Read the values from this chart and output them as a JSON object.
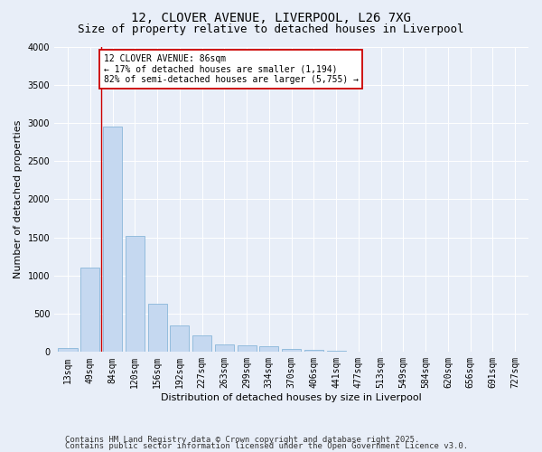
{
  "title_line1": "12, CLOVER AVENUE, LIVERPOOL, L26 7XG",
  "title_line2": "Size of property relative to detached houses in Liverpool",
  "xlabel": "Distribution of detached houses by size in Liverpool",
  "ylabel": "Number of detached properties",
  "categories": [
    "13sqm",
    "49sqm",
    "84sqm",
    "120sqm",
    "156sqm",
    "192sqm",
    "227sqm",
    "263sqm",
    "299sqm",
    "334sqm",
    "370sqm",
    "406sqm",
    "441sqm",
    "477sqm",
    "513sqm",
    "549sqm",
    "584sqm",
    "620sqm",
    "656sqm",
    "691sqm",
    "727sqm"
  ],
  "values": [
    55,
    1100,
    2950,
    1520,
    635,
    350,
    215,
    95,
    90,
    70,
    40,
    25,
    10,
    5,
    2,
    1,
    0,
    0,
    0,
    0,
    0
  ],
  "bar_color": "#c5d8f0",
  "bar_edge_color": "#7aadd4",
  "vline_color": "#cc0000",
  "vline_x": 1.5,
  "annotation_text": "12 CLOVER AVENUE: 86sqm\n← 17% of detached houses are smaller (1,194)\n82% of semi-detached houses are larger (5,755) →",
  "annotation_box_facecolor": "#ffffff",
  "annotation_box_edge": "#cc0000",
  "ylim": [
    0,
    4000
  ],
  "yticks": [
    0,
    500,
    1000,
    1500,
    2000,
    2500,
    3000,
    3500,
    4000
  ],
  "footer_line1": "Contains HM Land Registry data © Crown copyright and database right 2025.",
  "footer_line2": "Contains public sector information licensed under the Open Government Licence v3.0.",
  "bg_color": "#e8eef8",
  "plot_bg_color": "#e8eef8",
  "grid_color": "#ffffff",
  "title_fontsize": 10,
  "subtitle_fontsize": 9,
  "axis_label_fontsize": 8,
  "tick_fontsize": 7,
  "annotation_fontsize": 7,
  "footer_fontsize": 6.5
}
